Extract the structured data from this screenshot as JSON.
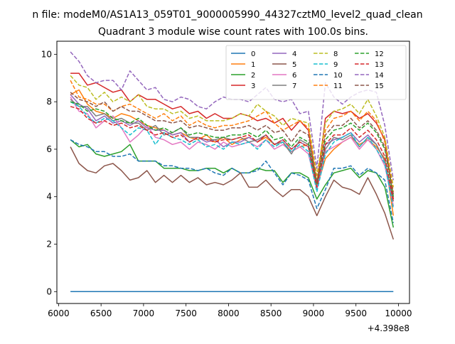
{
  "figure_title": "n file: modeM0/AS1A13_059T01_9000005990_44327cztM0_level2_quad_clean",
  "chart_data": {
    "type": "line",
    "title": "Quadrant 3 module wise count rates with 100.0s bins.",
    "xlabel": "",
    "ylabel": "",
    "x_offset_label": "+4.398e8",
    "xlim": [
      5980,
      10130
    ],
    "ylim": [
      -0.5,
      10.55
    ],
    "x_ticks": [
      6000,
      6500,
      7000,
      7500,
      8000,
      8500,
      9000,
      9500,
      10000
    ],
    "x_tick_labels": [
      "6000",
      "6500",
      "7000",
      "7500",
      "8000",
      "8500",
      "9000",
      "9500",
      "10000"
    ],
    "y_ticks": [
      0,
      2,
      4,
      6,
      8,
      10
    ],
    "y_tick_labels": [
      "0",
      "2",
      "4",
      "6",
      "8",
      "10"
    ],
    "grid": false,
    "legend_position": "top-right",
    "legend_columns": 4,
    "x": [
      6140,
      6240,
      6340,
      6440,
      6540,
      6640,
      6740,
      6840,
      6940,
      7040,
      7140,
      7240,
      7340,
      7440,
      7540,
      7640,
      7740,
      7840,
      7940,
      8040,
      8140,
      8240,
      8340,
      8440,
      8540,
      8640,
      8740,
      8840,
      8940,
      9040,
      9140,
      9240,
      9340,
      9440,
      9540,
      9640,
      9740,
      9840,
      9940
    ],
    "series": [
      {
        "name": "0",
        "color": "#1f77b4",
        "dashed": false,
        "values": [
          0,
          0,
          0,
          0,
          0,
          0,
          0,
          0,
          0,
          0,
          0,
          0,
          0,
          0,
          0,
          0,
          0,
          0,
          0,
          0,
          0,
          0,
          0,
          0,
          0,
          0,
          0,
          0,
          0,
          0,
          0,
          0,
          0,
          0,
          0,
          0,
          0,
          0,
          0
        ]
      },
      {
        "name": "1",
        "color": "#ff7f0e",
        "dashed": false,
        "values": [
          8.3,
          8.5,
          7.9,
          7.6,
          7.5,
          7.3,
          7.5,
          7.4,
          7.2,
          7.0,
          6.9,
          6.8,
          6.6,
          6.7,
          6.5,
          6.4,
          6.6,
          6.3,
          6.5,
          6.2,
          6.4,
          6.5,
          6.3,
          6.5,
          6.2,
          6.3,
          5.9,
          6.1,
          6.2,
          4.4,
          5.6,
          6.0,
          6.3,
          6.5,
          6.2,
          6.4,
          6.1,
          5.6,
          3.2
        ]
      },
      {
        "name": "2",
        "color": "#2ca02c",
        "dashed": false,
        "values": [
          6.4,
          6.1,
          6.2,
          5.8,
          5.7,
          5.8,
          5.9,
          6.2,
          5.5,
          5.5,
          5.5,
          5.2,
          5.2,
          5.2,
          5.1,
          5.1,
          5.2,
          5.2,
          5.0,
          5.2,
          5.0,
          5.0,
          5.2,
          5.1,
          5.1,
          4.6,
          5.0,
          5.0,
          4.8,
          3.9,
          4.5,
          5.0,
          5.1,
          5.2,
          4.8,
          5.1,
          5.0,
          4.4,
          2.7
        ]
      },
      {
        "name": "3",
        "color": "#d62728",
        "dashed": false,
        "values": [
          9.2,
          9.2,
          8.7,
          8.8,
          8.6,
          8.4,
          8.5,
          8.0,
          8.3,
          8.1,
          8.1,
          7.9,
          7.7,
          7.8,
          7.5,
          7.6,
          7.3,
          7.5,
          7.3,
          7.3,
          7.5,
          7.4,
          7.2,
          7.3,
          7.1,
          7.3,
          6.8,
          7.2,
          6.8,
          4.5,
          7.3,
          7.6,
          7.5,
          7.6,
          7.3,
          7.5,
          7.1,
          6.4,
          3.9
        ]
      },
      {
        "name": "4",
        "color": "#9467bd",
        "dashed": false,
        "values": [
          8.3,
          7.9,
          7.7,
          7.2,
          7.4,
          7.1,
          7.2,
          7.0,
          7.2,
          6.9,
          6.8,
          6.8,
          6.6,
          6.7,
          6.3,
          6.5,
          6.3,
          6.4,
          6.1,
          6.3,
          6.3,
          6.5,
          6.3,
          6.6,
          6.2,
          6.4,
          6.0,
          6.3,
          6.1,
          4.3,
          6.2,
          6.4,
          6.5,
          6.7,
          6.3,
          6.6,
          6.2,
          5.5,
          3.6
        ]
      },
      {
        "name": "5",
        "color": "#8c564b",
        "dashed": false,
        "values": [
          6.1,
          5.4,
          5.1,
          5.0,
          5.3,
          5.4,
          5.1,
          4.7,
          4.8,
          5.1,
          4.6,
          4.9,
          4.6,
          4.9,
          4.6,
          4.8,
          4.5,
          4.6,
          4.5,
          4.7,
          5.0,
          4.4,
          4.4,
          4.7,
          4.3,
          4.0,
          4.3,
          4.3,
          4.0,
          3.2,
          4.0,
          4.7,
          4.4,
          4.3,
          4.1,
          4.8,
          4.1,
          3.3,
          2.2
        ]
      },
      {
        "name": "6",
        "color": "#e377c2",
        "dashed": false,
        "values": [
          8.2,
          7.6,
          7.5,
          6.9,
          7.2,
          7.4,
          6.9,
          6.3,
          6.6,
          7.0,
          6.5,
          6.4,
          6.2,
          6.3,
          6.0,
          6.3,
          6.2,
          6.0,
          6.3,
          6.1,
          6.2,
          6.3,
          6.1,
          6.4,
          6.0,
          6.2,
          5.9,
          6.1,
          5.8,
          4.3,
          5.9,
          6.1,
          6.3,
          6.5,
          6.0,
          6.4,
          6.0,
          5.3,
          3.6
        ]
      },
      {
        "name": "7",
        "color": "#7f7f7f",
        "dashed": false,
        "values": [
          8.1,
          7.8,
          7.8,
          7.4,
          7.5,
          7.2,
          7.3,
          7.1,
          7.1,
          6.8,
          7.0,
          6.6,
          6.7,
          6.9,
          6.5,
          6.5,
          6.4,
          6.4,
          6.5,
          6.4,
          6.5,
          6.3,
          6.4,
          6.6,
          6.2,
          6.3,
          5.8,
          6.4,
          6.2,
          4.5,
          6.0,
          6.5,
          6.4,
          6.6,
          6.1,
          6.5,
          6.2,
          5.5,
          3.8
        ]
      },
      {
        "name": "8",
        "color": "#bcbd22",
        "dashed": true,
        "values": [
          9.1,
          8.7,
          8.6,
          8.1,
          8.4,
          8.0,
          8.2,
          8.0,
          8.3,
          7.8,
          7.7,
          7.7,
          7.5,
          7.6,
          7.3,
          7.4,
          7.2,
          7.2,
          7.2,
          7.3,
          7.5,
          7.4,
          7.9,
          7.6,
          7.4,
          7.0,
          7.3,
          7.2,
          7.1,
          4.9,
          7.1,
          7.6,
          7.7,
          7.9,
          7.5,
          8.1,
          7.4,
          6.5,
          4.4
        ]
      },
      {
        "name": "9",
        "color": "#17becf",
        "dashed": true,
        "values": [
          8.0,
          7.8,
          7.4,
          7.1,
          7.3,
          7.2,
          6.9,
          6.6,
          6.9,
          6.8,
          6.2,
          6.7,
          6.5,
          6.4,
          6.2,
          6.4,
          6.1,
          6.2,
          6.0,
          6.3,
          6.2,
          6.3,
          6.0,
          6.4,
          6.1,
          6.3,
          5.9,
          6.2,
          5.9,
          4.2,
          5.8,
          6.3,
          6.5,
          6.7,
          6.1,
          6.5,
          6.0,
          5.4,
          3.5
        ]
      },
      {
        "name": "10",
        "color": "#1f77b4",
        "dashed": true,
        "values": [
          6.4,
          6.2,
          6.1,
          5.9,
          5.9,
          5.7,
          5.7,
          5.8,
          5.5,
          5.5,
          5.5,
          5.3,
          5.3,
          5.2,
          5.2,
          5.1,
          5.2,
          5.0,
          4.9,
          5.2,
          5.0,
          5.0,
          5.1,
          5.5,
          5.0,
          4.5,
          5.0,
          4.9,
          4.7,
          3.5,
          4.3,
          5.2,
          5.2,
          5.3,
          4.9,
          5.2,
          5.0,
          4.7,
          2.9
        ]
      },
      {
        "name": "11",
        "color": "#ff7f0e",
        "dashed": true,
        "values": [
          8.9,
          8.2,
          8.1,
          7.9,
          7.9,
          7.6,
          7.8,
          7.9,
          7.7,
          7.5,
          7.3,
          7.5,
          7.2,
          7.4,
          7.0,
          7.2,
          7.0,
          6.9,
          7.0,
          7.0,
          7.1,
          7.2,
          7.4,
          7.6,
          7.1,
          6.8,
          7.0,
          7.2,
          6.9,
          4.7,
          6.8,
          7.3,
          7.4,
          7.6,
          7.2,
          7.6,
          7.2,
          6.3,
          4.2
        ]
      },
      {
        "name": "12",
        "color": "#2ca02c",
        "dashed": true,
        "values": [
          8.0,
          7.9,
          7.6,
          7.7,
          7.6,
          7.3,
          7.2,
          7.1,
          7.3,
          7.0,
          6.8,
          6.9,
          6.7,
          6.9,
          6.6,
          6.7,
          6.6,
          6.5,
          6.5,
          6.6,
          6.6,
          6.7,
          6.5,
          6.8,
          6.4,
          6.5,
          6.1,
          6.5,
          6.3,
          4.5,
          6.4,
          6.8,
          6.9,
          7.1,
          6.8,
          7.1,
          6.7,
          6.0,
          4.0
        ]
      },
      {
        "name": "13",
        "color": "#d62728",
        "dashed": true,
        "values": [
          7.8,
          7.7,
          7.3,
          7.1,
          7.2,
          7.0,
          7.1,
          6.9,
          7.0,
          6.8,
          6.6,
          6.7,
          6.5,
          6.6,
          6.3,
          6.5,
          6.4,
          6.3,
          6.4,
          6.4,
          6.5,
          6.6,
          6.3,
          6.6,
          6.2,
          6.4,
          6.0,
          6.3,
          6.1,
          4.4,
          6.2,
          6.6,
          6.6,
          6.9,
          6.5,
          6.8,
          6.4,
          5.7,
          3.8
        ]
      },
      {
        "name": "14",
        "color": "#9467bd",
        "dashed": true,
        "values": [
          10.1,
          9.7,
          9.1,
          8.8,
          8.9,
          8.9,
          8.5,
          9.3,
          8.9,
          8.5,
          8.6,
          8.1,
          8.0,
          8.2,
          8.1,
          7.8,
          7.7,
          8.0,
          8.2,
          8.1,
          8.1,
          8.0,
          8.3,
          8.6,
          8.1,
          8.0,
          8.1,
          7.5,
          7.6,
          5.2,
          8.8,
          8.2,
          7.9,
          8.2,
          8.4,
          8.5,
          8.4,
          7.0,
          4.7
        ]
      },
      {
        "name": "15",
        "color": "#8c564b",
        "dashed": true,
        "values": [
          8.4,
          8.1,
          8.0,
          7.8,
          8.0,
          7.6,
          7.8,
          7.6,
          7.6,
          7.4,
          7.2,
          7.2,
          7.1,
          7.2,
          6.9,
          7.0,
          6.9,
          6.8,
          6.8,
          6.9,
          6.9,
          7.0,
          6.8,
          7.0,
          6.7,
          6.8,
          6.3,
          6.8,
          6.6,
          4.6,
          6.6,
          7.0,
          7.0,
          7.3,
          6.9,
          7.2,
          6.8,
          6.1,
          4.1
        ]
      }
    ]
  }
}
